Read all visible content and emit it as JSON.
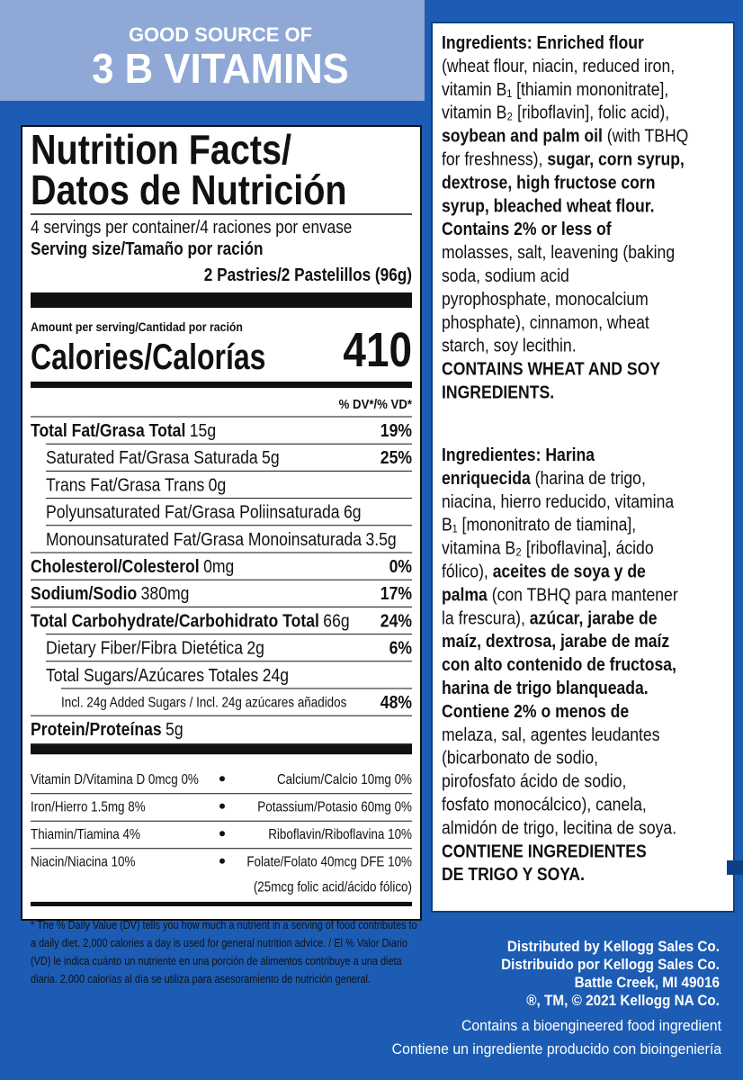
{
  "banner": {
    "line1": "GOOD SOURCE OF",
    "line2": "3 B VITAMINS"
  },
  "nutrition_facts": {
    "title_line1": "Nutrition Facts/",
    "title_line2": "Datos de Nutrición",
    "servings": "4 servings per container/4 raciones por envase",
    "serving_size_label": "Serving size/Tamaño por ración",
    "serving_size": "2 Pastries/2 Pastelillos (96g)",
    "amount_per_serving": "Amount per serving/Cantidad por ración",
    "calories_label": "Calories/Calorías",
    "calories": 410,
    "dv_header": "% DV*/% VD*",
    "nutrients": [
      {
        "name": "Total Fat/Grasa Total",
        "amount": "15g",
        "dv": "19%",
        "bold": true,
        "indent": 0
      },
      {
        "name": "Saturated Fat/Grasa Saturada",
        "amount": "5g",
        "dv": "25%",
        "bold": false,
        "indent": 1
      },
      {
        "name": "Trans Fat/Grasa Trans",
        "amount": "0g",
        "bold": false,
        "indent": 1
      },
      {
        "name": "Polyunsaturated Fat/Grasa Poliinsaturada",
        "amount": "6g",
        "bold": false,
        "indent": 1
      },
      {
        "name": "Monounsaturated Fat/Grasa Monoinsaturada",
        "amount": "3.5g",
        "bold": false,
        "indent": 1
      },
      {
        "name": "Cholesterol/Colesterol",
        "amount": "0mg",
        "dv": "0%",
        "bold": true,
        "indent": 0
      },
      {
        "name": "Sodium/Sodio",
        "amount": "380mg",
        "dv": "17%",
        "bold": true,
        "indent": 0
      },
      {
        "name": "Total Carbohydrate/Carbohidrato Total",
        "amount": "66g",
        "dv": "24%",
        "bold": true,
        "indent": 0
      },
      {
        "name": "Dietary Fiber/Fibra Dietética",
        "amount": "2g",
        "dv": "6%",
        "bold": false,
        "indent": 1
      },
      {
        "name": "Total Sugars/Azúcares Totales",
        "amount": "24g",
        "bold": false,
        "indent": 1
      },
      {
        "name": "Incl. 24g Added Sugars / Incl. 24g azúcares añadidos",
        "dv": "48%",
        "bold": false,
        "indent": 2
      },
      {
        "name": "Protein/Proteínas",
        "amount": "5g",
        "bold": true,
        "indent": 0
      }
    ],
    "vitamins": [
      {
        "left": "Vitamin D/Vitamina D 0mcg 0%",
        "right": "Calcium/Calcio 10mg 0%"
      },
      {
        "left": "Iron/Hierro 1.5mg 8%",
        "right": "Potassium/Potasio 60mg 0%"
      },
      {
        "left": "Thiamin/Tiamina 4%",
        "right": "Riboflavin/Riboflavina 10%"
      },
      {
        "left": "Niacin/Niacina 10%",
        "right": "Folate/Folato 40mcg DFE 10%",
        "right_note": "(25mcg folic acid/ácido fólico)"
      }
    ],
    "footnote": [
      "* The % Daily Value (DV) tells you how much a nutrient in a serving of food contributes to",
      "a daily diet. 2,000 calories a day is used for general nutrition advice. / El % Valor Diario",
      "(VD) le indica cuánto un nutriente en una porción de alimentos contribuye a una dieta",
      "diaria. 2,000 calorías al día se utiliza para asesoramiento de nutrición general."
    ]
  },
  "ingredients_en": {
    "lines": [
      [
        {
          "text": "Ingredients: Enriched flour",
          "bold": true
        }
      ],
      [
        {
          "text": "(wheat flour, niacin, reduced iron,",
          "bold": false
        }
      ],
      [
        {
          "text": "vitamin B₁ [thiamin mononitrate],",
          "bold": false
        }
      ],
      [
        {
          "text": "vitamin B₂ [riboflavin], folic acid),",
          "bold": false
        }
      ],
      [
        {
          "text": "soybean and palm oil",
          "bold": true
        },
        {
          "text": " (with TBHQ",
          "bold": false
        }
      ],
      [
        {
          "text": "for freshness), ",
          "bold": false
        },
        {
          "text": "sugar, corn syrup,",
          "bold": true
        }
      ],
      [
        {
          "text": "dextrose, high fructose corn",
          "bold": true
        }
      ],
      [
        {
          "text": "syrup, bleached wheat flour.",
          "bold": true
        }
      ],
      [
        {
          "text": "Contains 2% or less of",
          "bold": true
        }
      ],
      [
        {
          "text": "molasses, salt, leavening (baking",
          "bold": false
        }
      ],
      [
        {
          "text": "soda, sodium acid",
          "bold": false
        }
      ],
      [
        {
          "text": "pyrophosphate, monocalcium",
          "bold": false
        }
      ],
      [
        {
          "text": "phosphate), cinnamon, wheat",
          "bold": false
        }
      ],
      [
        {
          "text": "starch, soy lecithin.",
          "bold": false
        }
      ],
      [
        {
          "text": "CONTAINS WHEAT AND SOY",
          "bold": true
        }
      ],
      [
        {
          "text": "INGREDIENTS.",
          "bold": true
        }
      ]
    ]
  },
  "ingredients_es": {
    "lines": [
      [
        {
          "text": "Ingredientes: Harina",
          "bold": true
        }
      ],
      [
        {
          "text": "enriquecida",
          "bold": true
        },
        {
          "text": " (harina de trigo,",
          "bold": false
        }
      ],
      [
        {
          "text": "niacina, hierro reducido, vitamina",
          "bold": false
        }
      ],
      [
        {
          "text": "B₁ [mononitrato de tiamina],",
          "bold": false
        }
      ],
      [
        {
          "text": "vitamina B₂ [riboflavina], ácido",
          "bold": false
        }
      ],
      [
        {
          "text": "fólico), ",
          "bold": false
        },
        {
          "text": "aceites de soya y de",
          "bold": true
        }
      ],
      [
        {
          "text": "palma",
          "bold": true
        },
        {
          "text": " (con TBHQ para mantener",
          "bold": false
        }
      ],
      [
        {
          "text": "la frescura), ",
          "bold": false
        },
        {
          "text": "azúcar, jarabe de",
          "bold": true
        }
      ],
      [
        {
          "text": "maíz, dextrosa, jarabe de maíz",
          "bold": true
        }
      ],
      [
        {
          "text": "con alto contenido de fructosa,",
          "bold": true
        }
      ],
      [
        {
          "text": "harina de trigo blanqueada.",
          "bold": true
        }
      ],
      [
        {
          "text": "Contiene 2% o menos de",
          "bold": true
        }
      ],
      [
        {
          "text": "melaza, sal, agentes leudantes",
          "bold": false
        }
      ],
      [
        {
          "text": "(bicarbonato de sodio,",
          "bold": false
        }
      ],
      [
        {
          "text": "pirofosfato ácido de sodio,",
          "bold": false
        }
      ],
      [
        {
          "text": "fosfato monocálcico), canela,",
          "bold": false
        }
      ],
      [
        {
          "text": "almidón de trigo, lecitina de soya.",
          "bold": false
        }
      ],
      [
        {
          "text": "CONTIENE INGREDIENTES",
          "bold": true
        }
      ],
      [
        {
          "text": "DE TRIGO Y SOYA.",
          "bold": true
        }
      ]
    ]
  },
  "distributor": [
    "Distributed by Kellogg Sales Co.",
    "Distribuido por Kellogg Sales Co.",
    "Battle Creek, MI 49016",
    "®, TM, © 2021 Kellogg NA Co."
  ],
  "bioengineered": [
    "Contains a bioengineered food ingredient",
    "Contiene un ingrediente producido con bioingeniería"
  ]
}
